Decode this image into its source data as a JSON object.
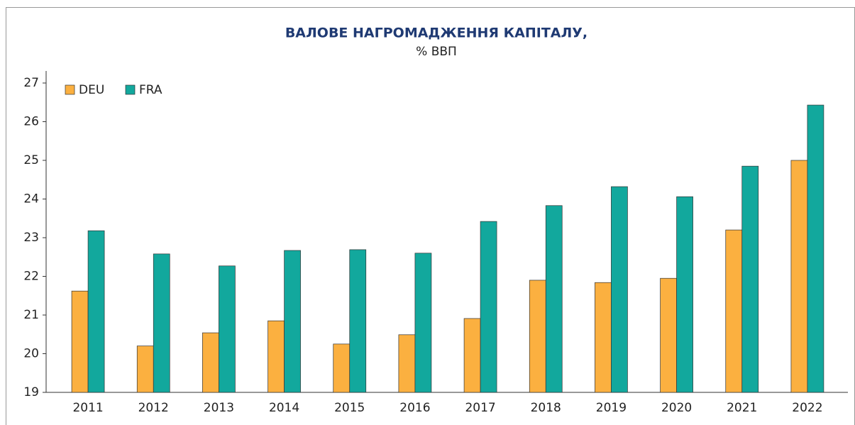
{
  "chart_data": {
    "type": "bar",
    "title": "ВАЛОВЕ НАГРОМАДЖЕННЯ КАПІТАЛУ,",
    "subtitle": "% ВВП",
    "categories": [
      "2011",
      "2012",
      "2013",
      "2014",
      "2015",
      "2016",
      "2017",
      "2018",
      "2019",
      "2020",
      "2021",
      "2022"
    ],
    "series": [
      {
        "name": "DEU",
        "color": "#fbb040",
        "values": [
          21.62,
          20.2,
          20.54,
          20.85,
          20.25,
          20.49,
          20.91,
          21.9,
          21.84,
          21.95,
          23.2,
          25.0
        ]
      },
      {
        "name": "FRA",
        "color": "#12a89d",
        "values": [
          23.18,
          22.58,
          22.27,
          22.67,
          22.69,
          22.6,
          23.42,
          23.83,
          24.32,
          24.06,
          24.85,
          26.43
        ]
      }
    ],
    "ylim": [
      19,
      27
    ],
    "yticks": [
      19,
      20,
      21,
      22,
      23,
      24,
      25,
      26,
      27
    ],
    "legend": "top-left"
  }
}
